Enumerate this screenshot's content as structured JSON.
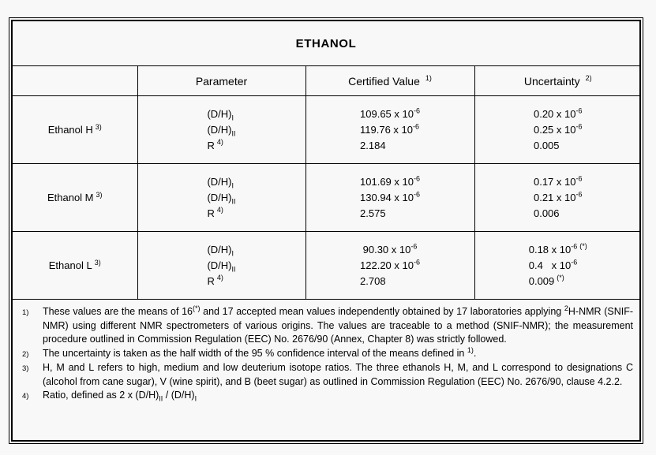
{
  "colors": {
    "background": "#f8f8f8",
    "border": "#000000",
    "text": "#000000"
  },
  "title": "ETHANOL",
  "table": {
    "headers": {
      "label_col": "",
      "parameter": "Parameter",
      "certified_value": "Certified Value",
      "certified_value_note": "1)",
      "uncertainty": "Uncertainty",
      "uncertainty_note": "2)"
    },
    "rows": [
      {
        "label": "Ethanol H",
        "label_note": "3)",
        "params": [
          {
            "base": "(D/H)",
            "sub": "I"
          },
          {
            "base": "(D/H)",
            "sub": "II"
          },
          {
            "base": "R",
            "sup": "4)"
          }
        ],
        "certified": [
          {
            "v": "109.65 x 10",
            "exp": "-6"
          },
          {
            "v": "119.76 x 10",
            "exp": "-6"
          },
          {
            "v": "2.184"
          }
        ],
        "uncertainty": [
          {
            "v": "0.20 x 10",
            "exp": "-6"
          },
          {
            "v": "0.25 x 10",
            "exp": "-6"
          },
          {
            "v": "0.005"
          }
        ]
      },
      {
        "label": "Ethanol M",
        "label_note": "3)",
        "params": [
          {
            "base": "(D/H)",
            "sub": "I"
          },
          {
            "base": "(D/H)",
            "sub": "II"
          },
          {
            "base": "R",
            "sup": "4)"
          }
        ],
        "certified": [
          {
            "v": "101.69 x 10",
            "exp": "-6"
          },
          {
            "v": "130.94 x 10",
            "exp": "-6"
          },
          {
            "v": "2.575"
          }
        ],
        "uncertainty": [
          {
            "v": "0.17 x 10",
            "exp": "-6"
          },
          {
            "v": "0.21 x 10",
            "exp": "-6"
          },
          {
            "v": "0.006"
          }
        ]
      },
      {
        "label": "Ethanol L",
        "label_note": "3)",
        "params": [
          {
            "base": "(D/H)",
            "sub": "I"
          },
          {
            "base": "(D/H)",
            "sub": "II"
          },
          {
            "base": "R",
            "sup": "4)"
          }
        ],
        "certified": [
          {
            "v": " 90.30 x 10",
            "exp": "-6"
          },
          {
            "v": "122.20 x 10",
            "exp": "-6"
          },
          {
            "v": "2.708"
          }
        ],
        "uncertainty": [
          {
            "v": "0.18 x 10",
            "exp": "-6",
            "note": "(*)"
          },
          {
            "v": "0.4   x 10",
            "exp": "-6"
          },
          {
            "v": "0.009",
            "note": "(*)"
          }
        ]
      }
    ]
  },
  "footnotes": [
    {
      "marker": "1)",
      "segments": [
        {
          "v": "These values are the means of 16"
        },
        {
          "s": "sup",
          "v": "(*)"
        },
        {
          "v": " and 17 accepted mean values independently obtained by 17 laboratories applying "
        },
        {
          "s": "sup",
          "v": "2"
        },
        {
          "v": "H-NMR (SNIF-NMR) using different NMR spectrometers of various origins. The values are traceable to a method (SNIF-NMR); the measurement procedure outlined in Commission Regulation (EEC) No. 2676/90 (Annex, Chapter 8) was strictly followed."
        }
      ]
    },
    {
      "marker": "2)",
      "segments": [
        {
          "v": "The uncertainty is taken as the half width of the 95 % confidence interval of the means defined in "
        },
        {
          "s": "sup",
          "v": "1)"
        },
        {
          "v": "."
        }
      ]
    },
    {
      "marker": "3)",
      "segments": [
        {
          "v": "H, M and L refers to high, medium and low deuterium isotope ratios. The three ethanols H, M, and L correspond to designations C (alcohol from cane sugar), V (wine spirit), and B (beet sugar) as outlined in Commission Regulation (EEC) No. 2676/90, clause 4.2.2."
        }
      ]
    },
    {
      "marker": "4)",
      "segments": [
        {
          "v": "Ratio, defined as 2 x (D/H)"
        },
        {
          "s": "sub",
          "v": "II"
        },
        {
          "v": " / (D/H)"
        },
        {
          "s": "sub",
          "v": "I"
        }
      ]
    }
  ]
}
